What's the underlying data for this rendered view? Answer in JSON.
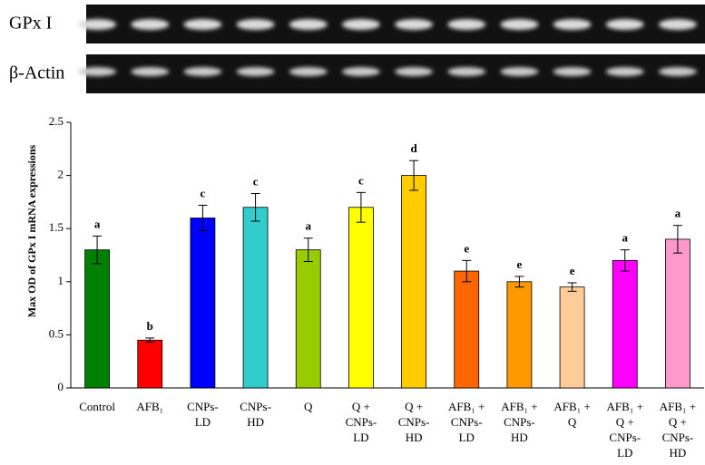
{
  "gel": {
    "labels": [
      "GPx I",
      "β-Actin"
    ]
  },
  "chart_data": {
    "type": "bar",
    "y_label": "Max OD of GPx I mRNA expressions",
    "categories": [
      [
        "Control"
      ],
      [
        "AFB₁"
      ],
      [
        "CNPs-",
        "LD"
      ],
      [
        "CNPs-",
        "HD"
      ],
      [
        "Q"
      ],
      [
        "Q +",
        "CNPs-",
        "LD"
      ],
      [
        "Q +",
        "CNPs-",
        "HD"
      ],
      [
        "AFB₁ +",
        "CNPs-",
        "LD"
      ],
      [
        "AFB₁ +",
        "CNPs-",
        "HD"
      ],
      [
        "AFB₁ +",
        "Q"
      ],
      [
        "AFB₁ +",
        "Q +",
        "CNPs-",
        "LD"
      ],
      [
        "AFB₁ +",
        "Q +",
        "CNPs-",
        "HD"
      ]
    ],
    "values": [
      1.3,
      0.45,
      1.6,
      1.7,
      1.3,
      1.7,
      2.0,
      1.1,
      1.0,
      0.95,
      1.2,
      1.4
    ],
    "errors": [
      0.13,
      0.02,
      0.12,
      0.13,
      0.11,
      0.14,
      0.14,
      0.1,
      0.05,
      0.04,
      0.1,
      0.13
    ],
    "letters": [
      "a",
      "b",
      "c",
      "c",
      "a",
      "c",
      "d",
      "e",
      "e",
      "e",
      "a",
      "a"
    ],
    "colors": [
      "#008000",
      "#ff0000",
      "#0000ff",
      "#33cccc",
      "#99cc00",
      "#ffff00",
      "#ffcc00",
      "#ff6600",
      "#ff9900",
      "#ffcc99",
      "#ff00ff",
      "#ff99cc"
    ],
    "ylim": [
      0,
      2.5
    ],
    "yticks": [
      0,
      0.5,
      1,
      1.5,
      2,
      2.5
    ]
  }
}
